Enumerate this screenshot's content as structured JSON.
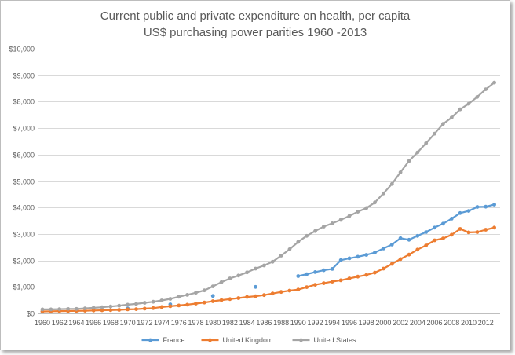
{
  "chart_data": {
    "type": "line",
    "title": "Current public and private expenditure on health, per capita",
    "subtitle": "US$ purchasing power parities 1960 -2013",
    "xlabel": "",
    "ylabel": "",
    "xlim": [
      1960,
      2013
    ],
    "ylim": [
      0,
      10000
    ],
    "y_ticks": [
      0,
      1000,
      2000,
      3000,
      4000,
      5000,
      6000,
      7000,
      8000,
      9000,
      10000
    ],
    "y_tick_labels": [
      "$0",
      "$1,000",
      "$2,000",
      "$3,000",
      "$4,000",
      "$5,000",
      "$6,000",
      "$7,000",
      "$8,000",
      "$9,000",
      "$10,000"
    ],
    "x_tick_labels": [
      "1960",
      "1962",
      "1964",
      "1966",
      "1968",
      "1970",
      "1972",
      "1974",
      "1976",
      "1978",
      "1980",
      "1982",
      "1984",
      "1986",
      "1988",
      "1990",
      "1992",
      "1994",
      "1996",
      "1998",
      "2000",
      "2002",
      "2004",
      "2006",
      "2008",
      "2010",
      "2012"
    ],
    "grid": true,
    "legend_position": "bottom",
    "series": [
      {
        "name": "France",
        "color": "#5B9BD5",
        "points": [
          [
            1960,
            70
          ],
          [
            1970,
            190
          ],
          [
            1975,
            340
          ],
          [
            1980,
            660
          ],
          [
            1985,
            1000
          ],
          [
            1990,
            1410
          ],
          [
            1991,
            1480
          ],
          [
            1992,
            1560
          ],
          [
            1993,
            1630
          ],
          [
            1994,
            1680
          ],
          [
            1995,
            2010
          ],
          [
            1996,
            2080
          ],
          [
            1997,
            2140
          ],
          [
            1998,
            2210
          ],
          [
            1999,
            2300
          ],
          [
            2000,
            2450
          ],
          [
            2001,
            2600
          ],
          [
            2002,
            2840
          ],
          [
            2003,
            2780
          ],
          [
            2004,
            2930
          ],
          [
            2005,
            3070
          ],
          [
            2006,
            3240
          ],
          [
            2007,
            3390
          ],
          [
            2008,
            3580
          ],
          [
            2009,
            3790
          ],
          [
            2010,
            3870
          ],
          [
            2011,
            4020
          ],
          [
            2012,
            4030
          ],
          [
            2013,
            4110
          ]
        ]
      },
      {
        "name": "United Kingdom",
        "color": "#ED7D31",
        "points": [
          [
            1960,
            75
          ],
          [
            1961,
            80
          ],
          [
            1962,
            85
          ],
          [
            1963,
            90
          ],
          [
            1964,
            95
          ],
          [
            1965,
            100
          ],
          [
            1966,
            110
          ],
          [
            1967,
            120
          ],
          [
            1968,
            125
          ],
          [
            1969,
            135
          ],
          [
            1970,
            150
          ],
          [
            1971,
            160
          ],
          [
            1972,
            180
          ],
          [
            1973,
            200
          ],
          [
            1974,
            240
          ],
          [
            1975,
            270
          ],
          [
            1976,
            300
          ],
          [
            1977,
            330
          ],
          [
            1978,
            370
          ],
          [
            1979,
            410
          ],
          [
            1980,
            460
          ],
          [
            1981,
            500
          ],
          [
            1982,
            540
          ],
          [
            1983,
            580
          ],
          [
            1984,
            620
          ],
          [
            1985,
            650
          ],
          [
            1986,
            690
          ],
          [
            1987,
            750
          ],
          [
            1988,
            810
          ],
          [
            1989,
            860
          ],
          [
            1990,
            900
          ],
          [
            1991,
            990
          ],
          [
            1992,
            1080
          ],
          [
            1993,
            1140
          ],
          [
            1994,
            1200
          ],
          [
            1995,
            1250
          ],
          [
            1996,
            1320
          ],
          [
            1997,
            1390
          ],
          [
            1998,
            1450
          ],
          [
            1999,
            1540
          ],
          [
            2000,
            1690
          ],
          [
            2001,
            1870
          ],
          [
            2002,
            2050
          ],
          [
            2003,
            2220
          ],
          [
            2004,
            2410
          ],
          [
            2005,
            2570
          ],
          [
            2006,
            2760
          ],
          [
            2007,
            2830
          ],
          [
            2008,
            2970
          ],
          [
            2009,
            3190
          ],
          [
            2010,
            3060
          ],
          [
            2011,
            3070
          ],
          [
            2012,
            3160
          ],
          [
            2013,
            3240
          ]
        ]
      },
      {
        "name": "United States",
        "color": "#A5A5A5",
        "points": [
          [
            1960,
            150
          ],
          [
            1961,
            150
          ],
          [
            1962,
            160
          ],
          [
            1963,
            170
          ],
          [
            1964,
            170
          ],
          [
            1965,
            190
          ],
          [
            1966,
            210
          ],
          [
            1967,
            230
          ],
          [
            1968,
            260
          ],
          [
            1969,
            290
          ],
          [
            1970,
            330
          ],
          [
            1971,
            360
          ],
          [
            1972,
            400
          ],
          [
            1973,
            440
          ],
          [
            1974,
            490
          ],
          [
            1975,
            550
          ],
          [
            1976,
            630
          ],
          [
            1977,
            700
          ],
          [
            1978,
            780
          ],
          [
            1979,
            870
          ],
          [
            1980,
            1020
          ],
          [
            1981,
            1180
          ],
          [
            1982,
            1320
          ],
          [
            1983,
            1430
          ],
          [
            1984,
            1550
          ],
          [
            1985,
            1690
          ],
          [
            1986,
            1810
          ],
          [
            1987,
            1950
          ],
          [
            1988,
            2180
          ],
          [
            1989,
            2420
          ],
          [
            1990,
            2700
          ],
          [
            1991,
            2930
          ],
          [
            1992,
            3110
          ],
          [
            1993,
            3280
          ],
          [
            1994,
            3400
          ],
          [
            1995,
            3530
          ],
          [
            1996,
            3680
          ],
          [
            1997,
            3840
          ],
          [
            1998,
            3980
          ],
          [
            1999,
            4190
          ],
          [
            2000,
            4530
          ],
          [
            2001,
            4890
          ],
          [
            2002,
            5330
          ],
          [
            2003,
            5760
          ],
          [
            2004,
            6080
          ],
          [
            2005,
            6430
          ],
          [
            2006,
            6790
          ],
          [
            2007,
            7160
          ],
          [
            2008,
            7400
          ],
          [
            2009,
            7710
          ],
          [
            2010,
            7920
          ],
          [
            2011,
            8180
          ],
          [
            2012,
            8470
          ],
          [
            2013,
            8720
          ]
        ]
      }
    ]
  }
}
